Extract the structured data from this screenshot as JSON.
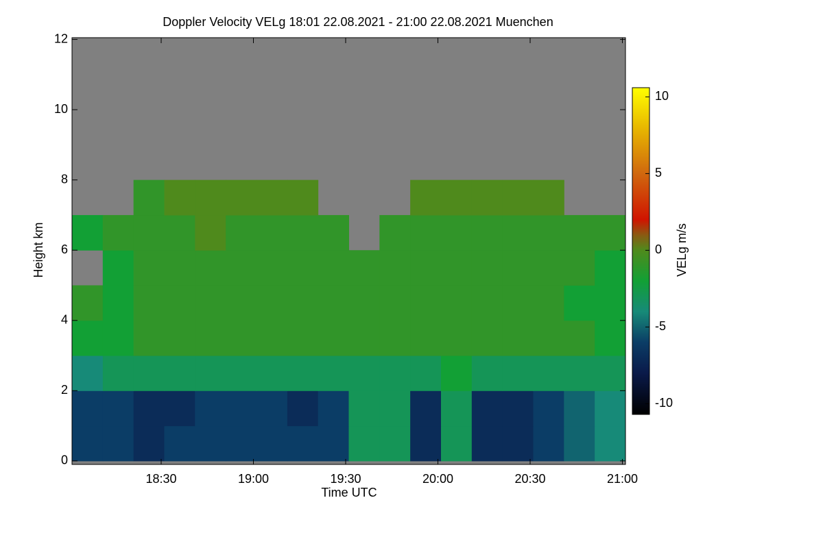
{
  "chart_data": {
    "type": "heatmap",
    "title": "Doppler Velocity VELg   18:01 22.08.2021 - 21:00 22.08.2021 Muenchen",
    "x_label": "Time UTC",
    "y_label": "Height km",
    "colorbar_label": "VELg m/s",
    "xlim": [
      18.0167,
      21.0167
    ],
    "xticks": [
      {
        "value": 18.5,
        "label": "18:30"
      },
      {
        "value": 19.0,
        "label": "19:00"
      },
      {
        "value": 19.5,
        "label": "19:30"
      },
      {
        "value": 20.0,
        "label": "20:00"
      },
      {
        "value": 20.5,
        "label": "20:30"
      },
      {
        "value": 21.0,
        "label": "21:00"
      }
    ],
    "ylim": [
      -0.1,
      12.05
    ],
    "yticks": [
      0,
      2,
      4,
      6,
      8,
      10,
      12
    ],
    "zlim": [
      -10.7,
      10.6
    ],
    "zticks": [
      -10,
      -5,
      0,
      5,
      10
    ],
    "missing_color": "#808080",
    "colorscale": [
      [
        -10.7,
        "#000000"
      ],
      [
        -8,
        "#0a1a4a"
      ],
      [
        -6,
        "#0b3d66"
      ],
      [
        -4,
        "#178a78"
      ],
      [
        -2,
        "#12a035"
      ],
      [
        0,
        "#4f8a1c"
      ],
      [
        1,
        "#8a5a12"
      ],
      [
        2,
        "#d01400"
      ],
      [
        5,
        "#d0680e"
      ],
      [
        8,
        "#e8b800"
      ],
      [
        10.6,
        "#ffff00"
      ]
    ],
    "xbins": [
      18.0167,
      18.1833,
      18.35,
      18.5167,
      18.6833,
      18.85,
      19.0167,
      19.1833,
      19.35,
      19.5167,
      19.6833,
      19.85,
      20.0167,
      20.1833,
      20.35,
      20.5167,
      20.6833,
      20.85,
      21.0167
    ],
    "ybins": [
      0,
      1,
      2,
      3,
      4,
      5,
      6,
      7,
      8,
      9,
      10,
      11,
      12
    ],
    "z": [
      [
        -6,
        -6,
        -7,
        -6,
        -6,
        -6,
        -6,
        -6,
        -6,
        -3,
        -3,
        -7,
        -3,
        -7,
        -7,
        -6,
        -5,
        -4
      ],
      [
        -6,
        -6,
        -7,
        -7,
        -6,
        -6,
        -6,
        -7,
        -6,
        -3,
        -3,
        -7,
        -3,
        -7,
        -7,
        -6,
        -5,
        -4
      ],
      [
        -4,
        -3,
        -3,
        -3,
        -3,
        -3,
        -3,
        -3,
        -3,
        -3,
        -3,
        -3,
        -2,
        -3,
        -3,
        -3,
        -3,
        -3
      ],
      [
        -2,
        -2,
        -1,
        -1,
        -1,
        -1,
        -1,
        -1,
        -1,
        -1,
        -1,
        -1,
        -1,
        -1,
        -1,
        -1,
        -1,
        -2
      ],
      [
        -1,
        -2,
        -1,
        -1,
        -1,
        -1,
        -1,
        -1,
        -1,
        -1,
        -1,
        -1,
        -1,
        -1,
        -1,
        -1,
        -2,
        -2
      ],
      [
        null,
        -2,
        -1,
        -1,
        -1,
        -1,
        -1,
        -1,
        -1,
        -1,
        -1,
        -1,
        -1,
        -1,
        -1,
        -1,
        -1,
        -2
      ],
      [
        -2,
        -1,
        -1,
        -1,
        0,
        -1,
        -1,
        -1,
        -1,
        null,
        -1,
        -1,
        -1,
        -1,
        -1,
        -1,
        -1,
        -1
      ],
      [
        null,
        null,
        -1,
        0,
        0,
        0,
        0,
        0,
        null,
        null,
        null,
        0,
        0,
        0,
        0,
        0,
        null,
        null
      ],
      [
        null,
        null,
        null,
        null,
        null,
        null,
        null,
        null,
        null,
        null,
        null,
        null,
        null,
        null,
        null,
        null,
        null,
        null
      ],
      [
        null,
        null,
        null,
        null,
        null,
        null,
        null,
        null,
        null,
        null,
        null,
        null,
        null,
        null,
        null,
        null,
        null,
        null
      ],
      [
        null,
        null,
        null,
        null,
        null,
        null,
        null,
        null,
        null,
        null,
        null,
        null,
        null,
        null,
        null,
        null,
        null,
        null
      ],
      [
        null,
        null,
        null,
        null,
        null,
        null,
        null,
        null,
        null,
        null,
        null,
        null,
        null,
        null,
        null,
        null,
        null,
        null
      ]
    ]
  }
}
